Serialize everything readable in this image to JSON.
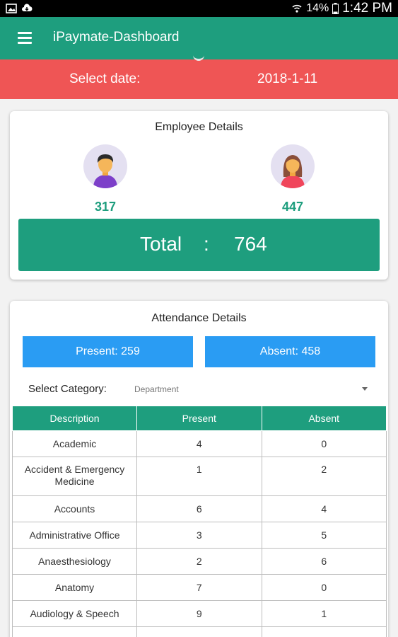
{
  "status_bar": {
    "battery": "14%",
    "time": "1:42 PM"
  },
  "app_bar": {
    "title": "iPaymate-Dashboard"
  },
  "date_bar": {
    "label": "Select date:",
    "value": "2018-1-11"
  },
  "employee_details": {
    "title": "Employee Details",
    "male_count": "317",
    "female_count": "447",
    "total_label": "Total",
    "total_separator": ":",
    "total_value": "764"
  },
  "attendance_details": {
    "title": "Attendance Details",
    "present_label": "Present: 259",
    "absent_label": "Absent: 458",
    "category_label": "Select Category:",
    "category_value": "Department",
    "columns": [
      "Description",
      "Present",
      "Absent"
    ],
    "rows": [
      {
        "description": "Academic",
        "present": "4",
        "absent": "0"
      },
      {
        "description": "Accident & Emergency Medicine",
        "present": "1",
        "absent": "2"
      },
      {
        "description": "Accounts",
        "present": "6",
        "absent": "4"
      },
      {
        "description": "Administrative Office",
        "present": "3",
        "absent": "5"
      },
      {
        "description": "Anaesthesiology",
        "present": "2",
        "absent": "6"
      },
      {
        "description": "Anatomy",
        "present": "7",
        "absent": "0"
      },
      {
        "description": "Audiology & Speech",
        "present": "9",
        "absent": "1"
      },
      {
        "description": "",
        "present": "",
        "absent": ""
      }
    ]
  },
  "colors": {
    "primary": "#1e9e7e",
    "accent_red": "#ef5555",
    "button_blue": "#2a9cf3"
  }
}
